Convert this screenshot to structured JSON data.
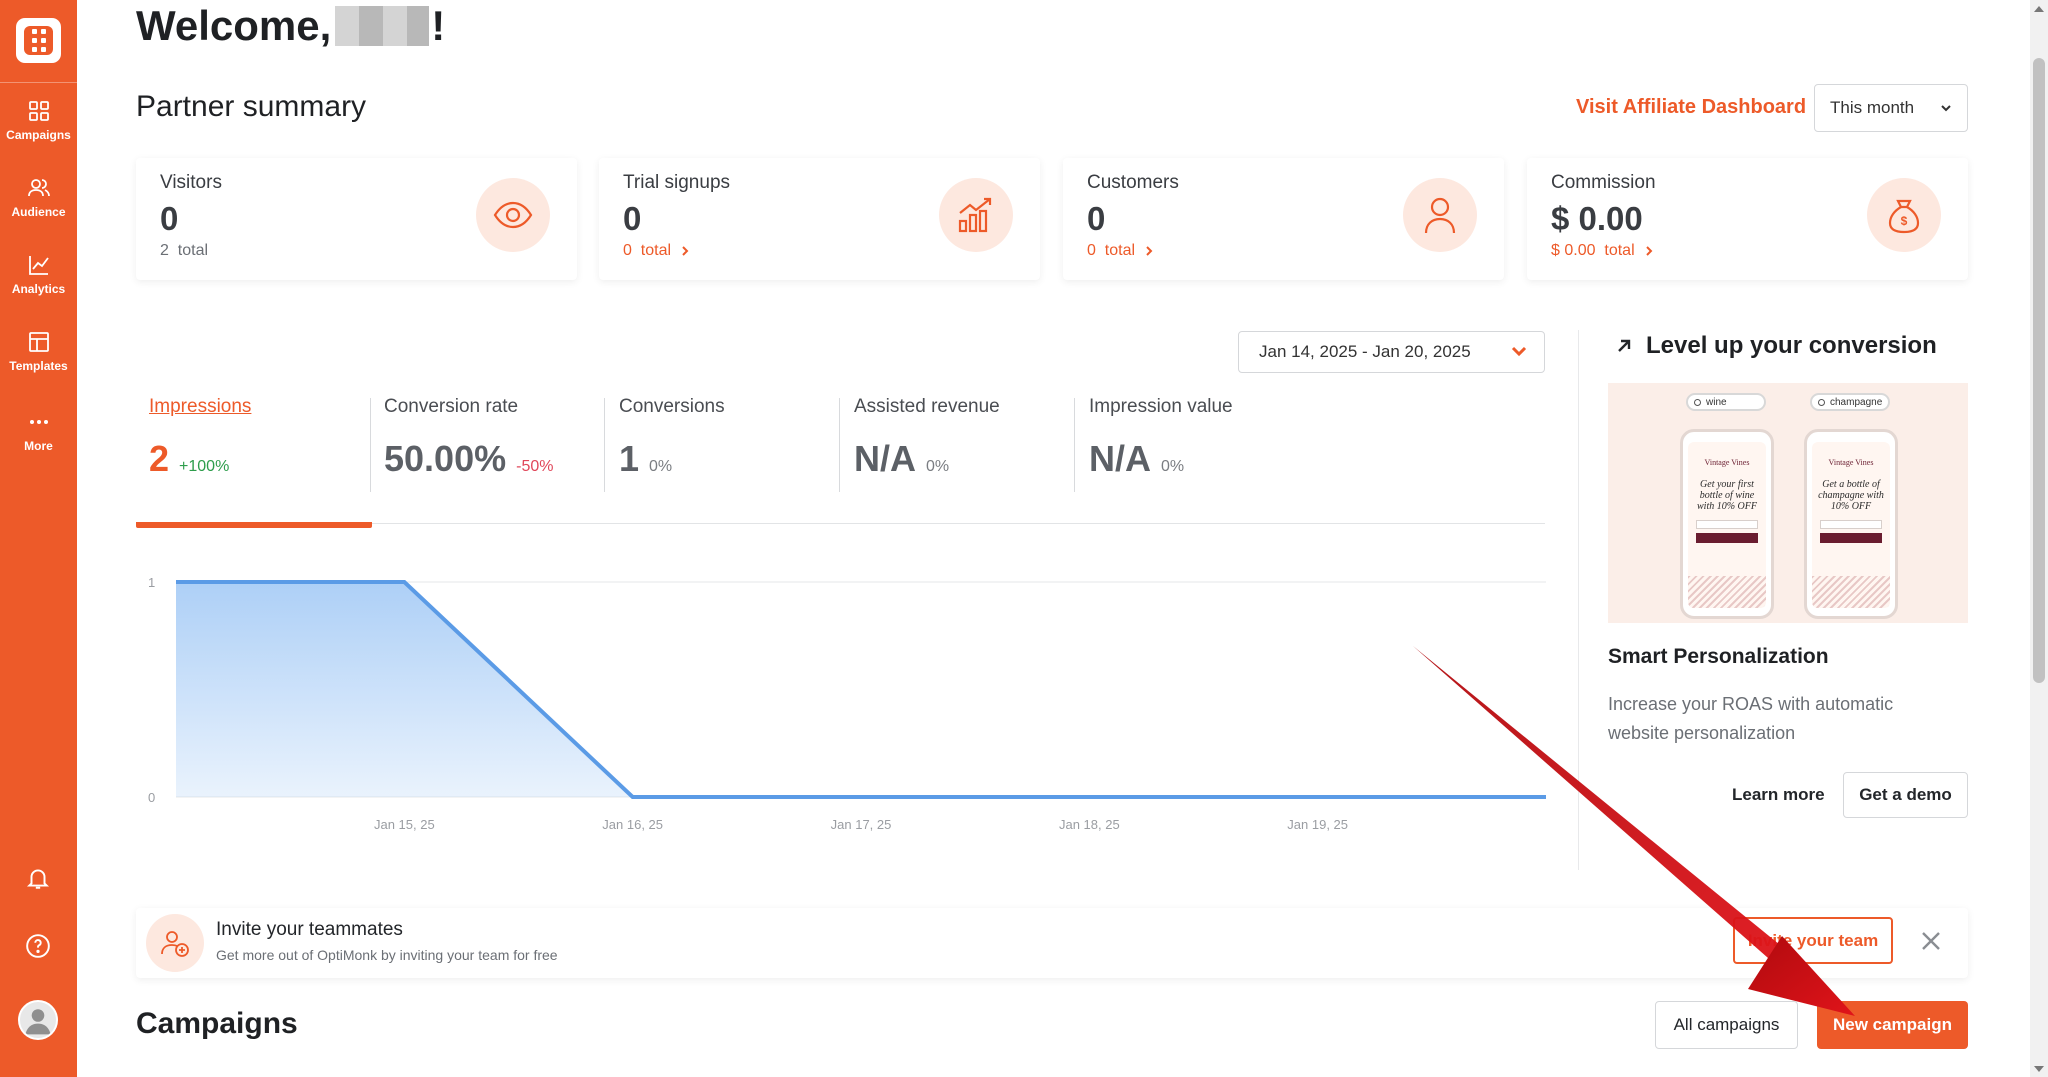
{
  "sidebar": {
    "items": [
      {
        "label": "Campaigns",
        "icon": "grid-icon"
      },
      {
        "label": "Audience",
        "icon": "users-icon"
      },
      {
        "label": "Analytics",
        "icon": "chart-line-icon"
      },
      {
        "label": "Templates",
        "icon": "layout-icon"
      },
      {
        "label": "More",
        "icon": "dots-icon"
      }
    ],
    "bottom_icons": [
      "bell-icon",
      "help-icon",
      "avatar"
    ]
  },
  "header": {
    "welcome_prefix": "Welcome,",
    "welcome_suffix": "!",
    "section_title": "Partner summary",
    "affiliate_link": "Visit Affiliate Dashboard",
    "period_select": "This month"
  },
  "stats": [
    {
      "label": "Visitors",
      "value": "0",
      "total_value": "2",
      "total_label": "total",
      "icon": "eye-icon"
    },
    {
      "label": "Trial signups",
      "value": "0",
      "total_value": "0",
      "total_label": "total",
      "icon": "growth-chart-icon"
    },
    {
      "label": "Customers",
      "value": "0",
      "total_value": "0",
      "total_label": "total",
      "icon": "person-icon"
    },
    {
      "label": "Commission",
      "value": "$ 0.00",
      "total_value": "$ 0.00",
      "total_label": "total",
      "icon": "money-bag-icon"
    }
  ],
  "date_range": "Jan 14, 2025 - Jan 20, 2025",
  "metrics": [
    {
      "label": "Impressions",
      "value": "2",
      "change": "+100%",
      "change_color": "#2e9d4c"
    },
    {
      "label": "Conversion rate",
      "value": "50.00%",
      "change": "-50%",
      "change_color": "#e0475a"
    },
    {
      "label": "Conversions",
      "value": "1",
      "change": "0%",
      "change_color": "#7a7d82"
    },
    {
      "label": "Assisted revenue",
      "value": "N/A",
      "change": "0%",
      "change_color": "#7a7d82"
    },
    {
      "label": "Impression value",
      "value": "N/A",
      "change": "0%",
      "change_color": "#7a7d82"
    }
  ],
  "chart_data": {
    "type": "area",
    "x": [
      "Jan 14, 25",
      "Jan 15, 25",
      "Jan 16, 25",
      "Jan 17, 25",
      "Jan 18, 25",
      "Jan 19, 25",
      "Jan 20, 25"
    ],
    "x_tick_labels": [
      "Jan 15, 25",
      "Jan 16, 25",
      "Jan 17, 25",
      "Jan 18, 25",
      "Jan 19, 25"
    ],
    "series": [
      {
        "values": [
          1,
          1,
          0,
          0,
          0,
          0,
          0
        ]
      }
    ],
    "y_ticks": [
      "0",
      "1"
    ],
    "ylim": [
      0,
      1
    ],
    "grid": true,
    "line_color": "#5b9be6",
    "fill_color": "#a9cdf6"
  },
  "promo": {
    "title": "Level up your conversion",
    "subtitle": "Smart Personalization",
    "description": "Increase your ROAS with automatic website personalization",
    "learn_more": "Learn more",
    "get_demo": "Get a demo",
    "image": {
      "search_terms": [
        "wine",
        "champagne"
      ],
      "brand": "Vintage Vines",
      "headlines": [
        "Get your first bottle of wine with 10% OFF",
        "Get a bottle of champagne with 10% OFF"
      ]
    }
  },
  "invite": {
    "title": "Invite your teammates",
    "subtitle": "Get more out of OptiMonk by inviting your team for free",
    "button": "Invite your team"
  },
  "campaigns": {
    "title": "Campaigns",
    "all_button": "All campaigns",
    "new_button": "New campaign"
  },
  "colors": {
    "brand": "#ed5a29",
    "annotation_arrow": "#d40f12"
  }
}
